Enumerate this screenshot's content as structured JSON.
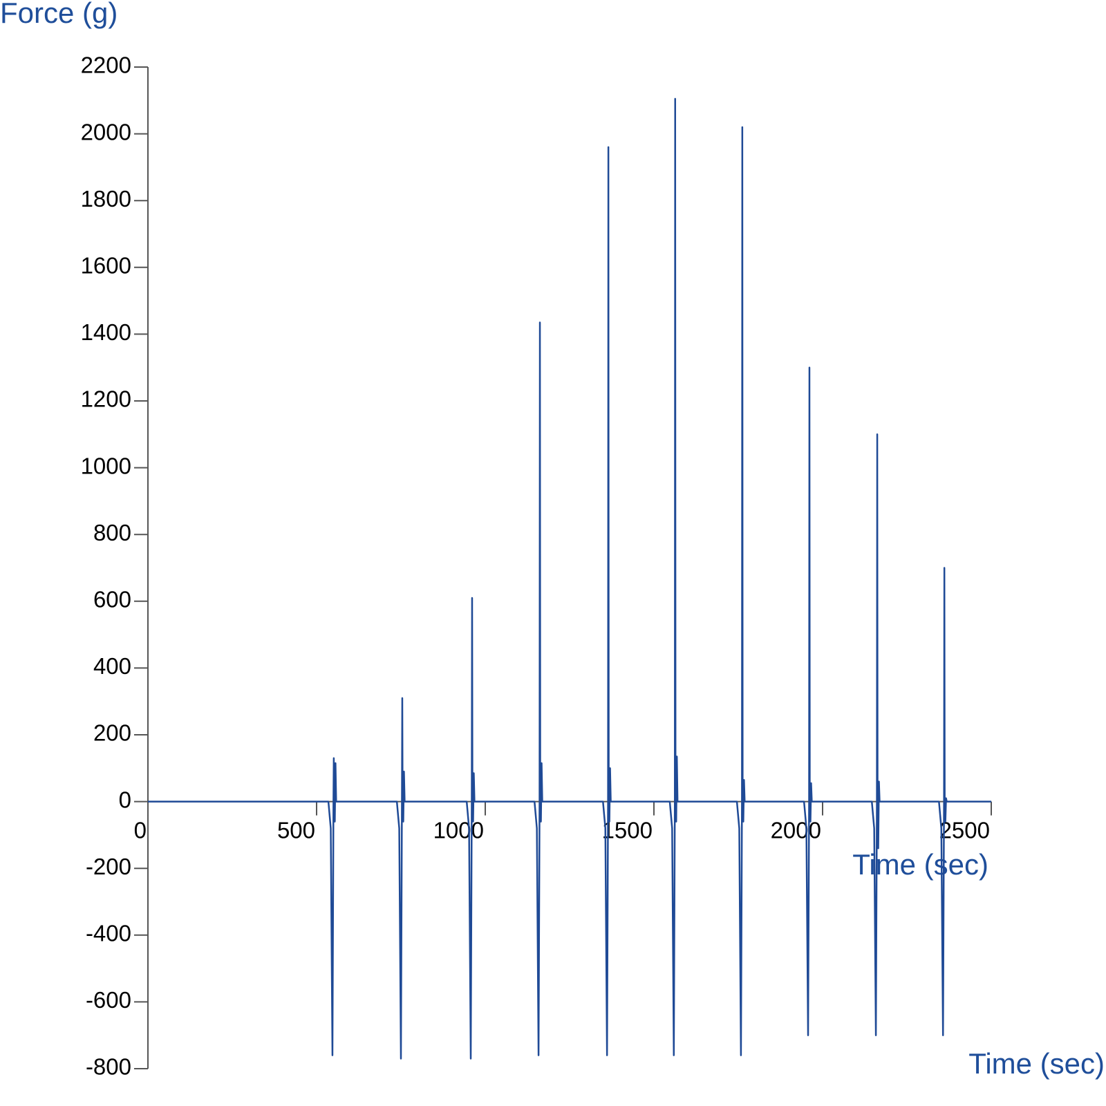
{
  "chart_data": {
    "type": "line",
    "y_label": "Force (g)",
    "x_label": "Time (sec)",
    "xlim": [
      0,
      2500
    ],
    "xticks": [
      0,
      500,
      1000,
      1500,
      2000,
      2500
    ],
    "ylim": [
      -800,
      2200
    ],
    "yticks": [
      -800,
      -600,
      -400,
      -200,
      0,
      200,
      400,
      600,
      800,
      1000,
      1200,
      1400,
      1600,
      1800,
      2000,
      2200
    ],
    "series": [
      {
        "color": "#1f4a96",
        "x": [
          0,
          535,
          542,
          547,
          550,
          551,
          552,
          554,
          556,
          558,
          738,
          745,
          750,
          753,
          754,
          755,
          757,
          759,
          761,
          945,
          952,
          957,
          960,
          961,
          962,
          964,
          966,
          968,
          1146,
          1153,
          1158,
          1161,
          1162,
          1163,
          1165,
          1167,
          1169,
          1349,
          1356,
          1361,
          1364,
          1365,
          1366,
          1368,
          1370,
          1372,
          1547,
          1554,
          1559,
          1562,
          1563,
          1564,
          1566,
          1568,
          1570,
          1746,
          1753,
          1758,
          1761,
          1762,
          1763,
          1765,
          1767,
          1769,
          1945,
          1952,
          1957,
          1960,
          1961,
          1962,
          1964,
          1966,
          1968,
          2146,
          2153,
          2158,
          2161,
          2162,
          2163,
          2165,
          2167,
          2169,
          2345,
          2352,
          2357,
          2360,
          2361,
          2362,
          2364,
          2366,
          2368,
          2500
        ],
        "values": [
          0,
          0,
          -80,
          -760,
          0,
          130,
          0,
          -60,
          115,
          0,
          0,
          -80,
          -770,
          0,
          310,
          0,
          -60,
          90,
          0,
          0,
          -80,
          -770,
          0,
          610,
          0,
          -60,
          85,
          0,
          0,
          -80,
          -760,
          0,
          1435,
          0,
          -60,
          115,
          0,
          0,
          -80,
          -760,
          0,
          1960,
          0,
          -60,
          100,
          0,
          0,
          -80,
          -760,
          0,
          2105,
          0,
          -60,
          135,
          0,
          0,
          -80,
          -760,
          0,
          2020,
          0,
          -60,
          65,
          0,
          0,
          -80,
          -700,
          0,
          1300,
          0,
          -60,
          55,
          0,
          0,
          -80,
          -700,
          0,
          1100,
          0,
          -140,
          60,
          0,
          0,
          -80,
          -700,
          0,
          700,
          0,
          -60,
          10,
          0,
          0
        ]
      }
    ]
  }
}
